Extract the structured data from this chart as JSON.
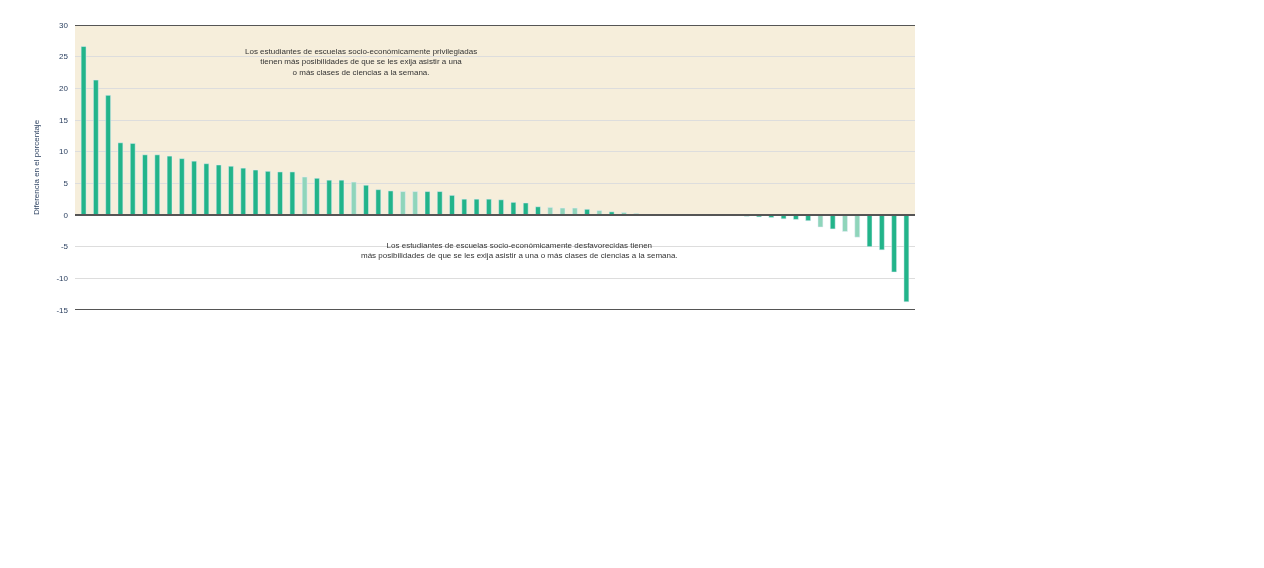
{
  "chart_data": {
    "type": "bar",
    "ylabel": "Diferencia en el porcentaje",
    "categories": [
      null,
      null,
      null,
      null,
      null,
      null,
      null,
      null,
      null,
      null,
      null,
      null,
      null,
      null,
      null,
      null,
      null,
      null,
      null,
      null,
      null,
      null,
      null,
      null,
      null,
      null,
      null,
      null,
      null,
      null,
      null,
      null,
      null,
      null,
      null,
      null,
      null,
      null,
      null,
      null,
      null,
      null,
      null,
      null,
      null,
      null,
      null,
      null,
      null,
      null,
      null,
      null,
      null,
      null,
      null,
      null,
      null,
      null,
      null,
      null,
      null,
      null,
      null,
      null,
      null,
      null,
      null,
      null
    ],
    "values": [
      26.6,
      21.3,
      18.9,
      11.4,
      11.3,
      9.5,
      9.5,
      9.3,
      8.9,
      8.5,
      8.1,
      7.9,
      7.7,
      7.4,
      7.1,
      6.9,
      6.8,
      6.8,
      6.0,
      5.8,
      5.5,
      5.5,
      5.2,
      4.7,
      4.0,
      3.8,
      3.7,
      3.7,
      3.7,
      3.7,
      3.1,
      2.5,
      2.5,
      2.5,
      2.4,
      2.0,
      1.9,
      1.3,
      1.2,
      1.1,
      1.1,
      0.9,
      0.7,
      0.5,
      0.4,
      0.2,
      0.1,
      0.1,
      0.1,
      0.1,
      -0.1,
      -0.1,
      -0.1,
      -0.1,
      -0.2,
      -0.3,
      -0.4,
      -0.6,
      -0.7,
      -0.9,
      -1.9,
      -2.2,
      -2.6,
      -3.5,
      -5.0,
      -5.5,
      -9.0,
      -13.7
    ],
    "colors": [
      "#22b48a",
      "#22b48a",
      "#22b48a",
      "#22b48a",
      "#22b48a",
      "#22b48a",
      "#22b48a",
      "#22b48a",
      "#22b48a",
      "#22b48a",
      "#22b48a",
      "#22b48a",
      "#22b48a",
      "#22b48a",
      "#22b48a",
      "#22b48a",
      "#22b48a",
      "#22b48a",
      "#8fd5bb",
      "#22b48a",
      "#22b48a",
      "#22b48a",
      "#8fd5bb",
      "#22b48a",
      "#22b48a",
      "#22b48a",
      "#8fd5bb",
      "#8fd5bb",
      "#22b48a",
      "#22b48a",
      "#22b48a",
      "#22b48a",
      "#22b48a",
      "#22b48a",
      "#22b48a",
      "#22b48a",
      "#22b48a",
      "#22b48a",
      "#8fd5bb",
      "#8fd5bb",
      "#8fd5bb",
      "#22b48a",
      "#8fd5bb",
      "#22b48a",
      "#8fd5bb",
      "#22b48a",
      "#22b48a",
      "#22b48a",
      "#22b48a",
      "#22b48a",
      "#22b48a",
      "#22b48a",
      "#22b48a",
      "#22b48a",
      "#22b48a",
      "#22b48a",
      "#22b48a",
      "#22b48a",
      "#22b48a",
      "#22b48a",
      "#8fd5bb",
      "#22b48a",
      "#8fd5bb",
      "#8fd5bb",
      "#22b48a",
      "#22b48a",
      "#22b48a",
      "#22b48a"
    ],
    "ylim": [
      -15,
      30
    ],
    "yticks": [
      -15,
      -10,
      -5,
      0,
      5,
      10,
      15,
      20,
      25,
      30
    ],
    "grid": "y",
    "tick_labels": "y",
    "bands": [
      {
        "axis": "y",
        "from": 0,
        "to": 30,
        "color": "#f6eedb"
      }
    ],
    "annotations": [
      "Los estudiantes de escuelas socio-económicamente privilegiadas\ntienen más posibilidades de que se les exija asistir a una\no más clases de ciencias a la semana.",
      "Los estudiantes de escuelas socio-económicamente desfavorecidas tienen\nmás posibilidades de que se les exija asistir a una o más clases de ciencias a la semana."
    ]
  }
}
